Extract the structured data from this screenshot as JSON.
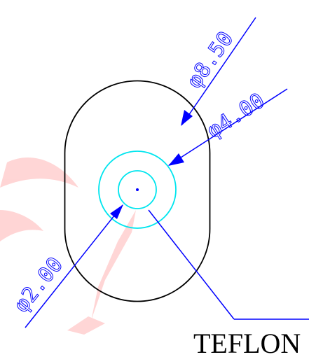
{
  "drawing": {
    "dimensions": {
      "outer_diameter": {
        "label": "φ8.50",
        "value": 8.5
      },
      "inner_diameter": {
        "label": "φ4.00",
        "value": 4.0
      },
      "core_diameter": {
        "label": "φ2.00",
        "value": 2.0
      }
    },
    "material_callout": {
      "label": "TEFLON"
    },
    "colors": {
      "outline": "#000000",
      "insulation": "#00e5ee",
      "dimension": "#0000ff",
      "center_point": "#0000ff",
      "watermark": "#ff0000"
    }
  }
}
